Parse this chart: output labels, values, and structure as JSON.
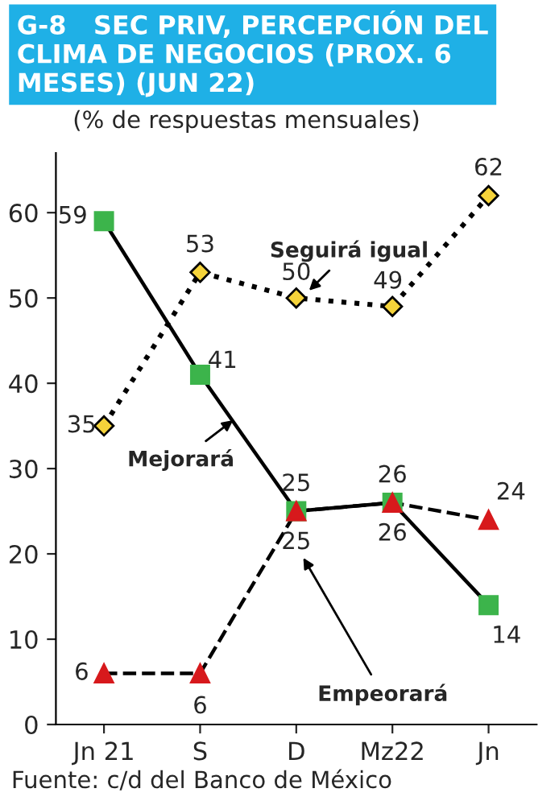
{
  "chart_data": {
    "type": "line",
    "title": "G-8   SEC PRIV, PERCEPCIÓN DEL CLIMA DE NEGOCIOS (PROX. 6 MESES) (JUN 22)",
    "subtitle": "(% de respuestas mensuales)",
    "categories": [
      "Jn 21",
      "S",
      "D",
      "Mz22",
      "Jn"
    ],
    "series": [
      {
        "name": "Seguirá igual",
        "color": "#000000",
        "marker": "diamond",
        "line_style": "dotted",
        "values": [
          35,
          53,
          50,
          49,
          62
        ]
      },
      {
        "name": "Mejorará",
        "color": "#3cb44b",
        "marker": "square",
        "line_style": "solid",
        "values": [
          59,
          41,
          25,
          26,
          14
        ]
      },
      {
        "name": "Empeorará",
        "color": "#d7191c",
        "marker": "triangle",
        "line_style": "dashed",
        "values": [
          6,
          6,
          25,
          26,
          24
        ]
      }
    ],
    "ylim": [
      0,
      67
    ],
    "yticks": [
      0,
      10,
      20,
      30,
      40,
      50,
      60
    ],
    "data_labels": true,
    "grid": false,
    "annotations": [
      "Fuente: c/d del Banco de México"
    ]
  }
}
